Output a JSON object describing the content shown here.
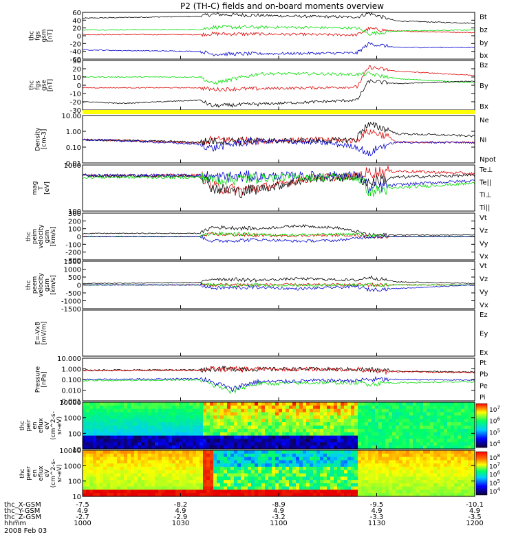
{
  "title": "P2 (TH-C) fields and on-board moments overview",
  "colors": {
    "black": "#000000",
    "red": "#dd0000",
    "green": "#00dd00",
    "blue": "#0000cc",
    "yellow": "#ffff00"
  },
  "chart_data": [
    {
      "id": "bgsm",
      "type": "line",
      "ylabel": [
        "thc",
        "fgs",
        "gsm",
        "[nT]"
      ],
      "yticks": [
        "60",
        "40",
        "20",
        "0",
        "-20",
        "-40",
        "-60"
      ],
      "ylim": [
        -60,
        60
      ],
      "series": [
        {
          "name": "Bt",
          "color": "black",
          "x": [
            0,
            0.05,
            0.3,
            0.33,
            0.55,
            0.7,
            0.73,
            0.8,
            1
          ],
          "y": [
            45,
            46,
            50,
            55,
            50,
            48,
            58,
            38,
            32
          ]
        },
        {
          "name": "bz",
          "color": "red",
          "x": [
            0,
            0.3,
            0.33,
            0.5,
            0.7,
            0.73,
            0.8,
            1
          ],
          "y": [
            3,
            3,
            5,
            4,
            2,
            18,
            12,
            8
          ]
        },
        {
          "name": "by",
          "color": "green",
          "x": [
            0,
            0.3,
            0.33,
            0.5,
            0.7,
            0.73,
            0.8,
            1
          ],
          "y": [
            15,
            16,
            22,
            22,
            20,
            5,
            12,
            15
          ]
        },
        {
          "name": "bx",
          "color": "blue",
          "x": [
            0,
            0.1,
            0.3,
            0.33,
            0.6,
            0.7,
            0.73,
            0.8,
            1
          ],
          "y": [
            -36,
            -38,
            -40,
            -47,
            -45,
            -44,
            -20,
            -30,
            -30
          ]
        }
      ]
    },
    {
      "id": "bgse",
      "type": "line",
      "ylabel": [
        "thc",
        "fgs",
        "gse",
        "[nT]"
      ],
      "yticks": [
        "30",
        "20",
        "10",
        "0",
        "-10",
        "-20",
        "-30"
      ],
      "ylim": [
        -30,
        30
      ],
      "series": [
        {
          "name": "Bz",
          "color": "red",
          "x": [
            0,
            0.3,
            0.33,
            0.6,
            0.7,
            0.73,
            0.8,
            1
          ],
          "y": [
            -3,
            -3,
            -5,
            -3,
            -2,
            22,
            17,
            12
          ]
        },
        {
          "name": "By",
          "color": "green",
          "x": [
            0,
            0.3,
            0.33,
            0.45,
            0.6,
            0.7,
            0.73,
            0.8,
            1
          ],
          "y": [
            10,
            10,
            2,
            14,
            14,
            13,
            14,
            8,
            3
          ]
        },
        {
          "name": "Bx",
          "color": "black",
          "x": [
            0,
            0.1,
            0.3,
            0.33,
            0.6,
            0.7,
            0.73,
            0.8,
            1
          ],
          "y": [
            -20,
            -22,
            -18,
            -25,
            -20,
            -18,
            5,
            2,
            5
          ]
        }
      ]
    },
    {
      "id": "density",
      "type": "line",
      "scale": "log",
      "ylabel": [
        "Density",
        "[cm-3]"
      ],
      "yticks": [
        "10.00",
        "1.00",
        "0.10",
        "0.01"
      ],
      "ylim": [
        0.01,
        10
      ],
      "series": [
        {
          "name": "Ne",
          "color": "red",
          "x": [
            0,
            0.3,
            0.33,
            0.45,
            0.6,
            0.7,
            0.73,
            0.8,
            1
          ],
          "y": [
            0.3,
            0.18,
            0.3,
            0.25,
            0.3,
            0.25,
            1.0,
            0.2,
            0.2
          ]
        },
        {
          "name": "Ni",
          "color": "black",
          "x": [
            0,
            0.3,
            0.33,
            0.45,
            0.6,
            0.7,
            0.73,
            0.8,
            1
          ],
          "y": [
            0.3,
            0.2,
            0.25,
            0.25,
            0.25,
            0.3,
            2.5,
            0.7,
            0.5
          ]
        },
        {
          "name": "Npot",
          "color": "blue",
          "x": [
            0,
            0.3,
            0.33,
            0.45,
            0.6,
            0.7,
            0.73,
            0.8,
            1
          ],
          "y": [
            0.3,
            0.15,
            0.08,
            0.25,
            0.2,
            0.1,
            0.03,
            0.2,
            0.2
          ]
        }
      ]
    },
    {
      "id": "temp",
      "type": "line",
      "scale": "log",
      "ylabel": [
        "mag",
        "T",
        "[eV]"
      ],
      "yticks": [
        "1000",
        "100"
      ],
      "ylim": [
        100,
        8000
      ],
      "series": [
        {
          "name": "Te⊥",
          "color": "red",
          "x": [
            0,
            0.3,
            0.33,
            0.4,
            0.5,
            0.6,
            0.7,
            0.73,
            0.8,
            1
          ],
          "y": [
            3000,
            3000,
            1000,
            700,
            1200,
            2500,
            2700,
            4000,
            4500,
            3500
          ]
        },
        {
          "name": "Te||",
          "color": "black",
          "x": [
            0,
            0.3,
            0.33,
            0.4,
            0.5,
            0.6,
            0.7,
            0.73,
            0.8,
            1
          ],
          "y": [
            2800,
            2800,
            900,
            600,
            1100,
            2300,
            2500,
            1500,
            2500,
            3000
          ]
        },
        {
          "name": "Ti⊥",
          "color": "blue",
          "x": [
            0,
            0.3,
            0.33,
            0.5,
            0.6,
            0.7,
            0.73,
            0.8,
            1
          ],
          "y": [
            3000,
            3000,
            2500,
            2800,
            3000,
            3000,
            800,
            1200,
            1800
          ]
        },
        {
          "name": "Ti||",
          "color": "green",
          "x": [
            0,
            0.3,
            0.33,
            0.5,
            0.6,
            0.7,
            0.73,
            0.8,
            1
          ],
          "y": [
            2500,
            2500,
            2000,
            2400,
            2500,
            2500,
            600,
            900,
            1400
          ]
        }
      ]
    },
    {
      "id": "vpeim",
      "type": "line",
      "ylabel": [
        "thc",
        "peim",
        "velocity",
        "gsm",
        "[km/s]"
      ],
      "yticks": [
        "300",
        "200",
        "100",
        "0",
        "-100",
        "-200",
        "-300"
      ],
      "ylim": [
        -300,
        300
      ],
      "series": [
        {
          "name": "Vt",
          "color": "black",
          "x": [
            0,
            0.3,
            0.33,
            0.45,
            0.55,
            0.65,
            0.7,
            0.73,
            1
          ],
          "y": [
            40,
            40,
            120,
            100,
            140,
            110,
            60,
            20,
            20
          ]
        },
        {
          "name": "Vz",
          "color": "red",
          "x": [
            0,
            0.3,
            0.33,
            0.5,
            0.7,
            0.73,
            1
          ],
          "y": [
            0,
            0,
            30,
            10,
            20,
            0,
            0
          ]
        },
        {
          "name": "Vy",
          "color": "green",
          "x": [
            0,
            0.3,
            0.33,
            0.5,
            0.7,
            0.73,
            1
          ],
          "y": [
            0,
            0,
            40,
            20,
            30,
            0,
            0
          ]
        },
        {
          "name": "Vx",
          "color": "blue",
          "x": [
            0,
            0.3,
            0.33,
            0.45,
            0.55,
            0.65,
            0.7,
            0.73,
            1
          ],
          "y": [
            0,
            0,
            -60,
            -40,
            -60,
            -50,
            -20,
            0,
            0
          ]
        }
      ]
    },
    {
      "id": "vpeem",
      "type": "line",
      "ylabel": [
        "thc",
        "peem",
        "velocity",
        "gsm",
        "[km/s]"
      ],
      "yticks": [
        "1500",
        "1000",
        "500",
        "0",
        "-500",
        "-1000",
        "-1500"
      ],
      "ylim": [
        -1500,
        1500
      ],
      "series": [
        {
          "name": "Vt",
          "color": "black",
          "x": [
            0,
            0.3,
            0.33,
            0.45,
            0.55,
            0.7,
            0.73,
            0.8,
            1
          ],
          "y": [
            100,
            150,
            400,
            300,
            400,
            300,
            500,
            200,
            100
          ]
        },
        {
          "name": "Vz",
          "color": "red",
          "x": [
            0,
            0.3,
            0.5,
            0.7,
            1
          ],
          "y": [
            0,
            0,
            20,
            10,
            0
          ]
        },
        {
          "name": "Vy",
          "color": "green",
          "x": [
            0,
            0.3,
            0.5,
            0.7,
            1
          ],
          "y": [
            0,
            0,
            -20,
            0,
            0
          ]
        },
        {
          "name": "Vx",
          "color": "blue",
          "x": [
            0,
            0.3,
            0.33,
            0.45,
            0.55,
            0.7,
            0.73,
            1
          ],
          "y": [
            0,
            0,
            -200,
            -150,
            -250,
            -100,
            -300,
            0
          ]
        }
      ]
    },
    {
      "id": "efield",
      "type": "line",
      "ylabel": [
        "E=-VxB",
        "[mV/m]"
      ],
      "yticks": [],
      "ylim": [
        -1,
        1
      ],
      "series": [
        {
          "name": "Ez",
          "color": "red",
          "x": [],
          "y": []
        },
        {
          "name": "Ey",
          "color": "green",
          "x": [],
          "y": []
        },
        {
          "name": "Ex",
          "color": "blue",
          "x": [],
          "y": []
        }
      ]
    },
    {
      "id": "pressure",
      "type": "line",
      "scale": "log",
      "ylabel": [
        "Pressure",
        "[nPa]"
      ],
      "yticks": [
        "10.000",
        "1.000",
        "0.100",
        "0.010",
        "0.001"
      ],
      "ylim": [
        0.001,
        10
      ],
      "series": [
        {
          "name": "Pt",
          "color": "black",
          "x": [
            0,
            0.3,
            0.33,
            0.6,
            0.7,
            0.73,
            0.8,
            1
          ],
          "y": [
            0.75,
            0.8,
            1.0,
            0.95,
            0.9,
            0.8,
            0.6,
            0.5
          ]
        },
        {
          "name": "Pb",
          "color": "red",
          "x": [
            0,
            0.3,
            0.33,
            0.6,
            0.7,
            0.73,
            0.8,
            1
          ],
          "y": [
            0.7,
            0.75,
            0.95,
            0.9,
            0.85,
            0.6,
            0.55,
            0.45
          ]
        },
        {
          "name": "Pe",
          "color": "green",
          "x": [
            0,
            0.3,
            0.33,
            0.38,
            0.45,
            0.6,
            0.7,
            0.73,
            0.8,
            1
          ],
          "y": [
            0.08,
            0.09,
            0.03,
            0.005,
            0.04,
            0.05,
            0.05,
            0.04,
            0.05,
            0.06
          ]
        },
        {
          "name": "Pi",
          "color": "blue",
          "x": [
            0,
            0.3,
            0.33,
            0.38,
            0.45,
            0.6,
            0.7,
            0.73,
            0.8,
            1
          ],
          "y": [
            0.1,
            0.12,
            0.05,
            0.01,
            0.06,
            0.08,
            0.08,
            0.1,
            0.1,
            0.09
          ]
        }
      ]
    },
    {
      "id": "peir",
      "type": "heatmap",
      "ylabel": [
        "thc",
        "peir",
        "en",
        "eflux",
        "eV",
        "(cm^2-s-",
        "sr-eV)"
      ],
      "yticks": [
        "10000",
        "1000",
        "100",
        "10"
      ],
      "ylim": [
        10,
        20000
      ],
      "colorbar_ticks": [
        "10^7",
        "10^6",
        "10^5",
        "10^4"
      ]
    },
    {
      "id": "peer",
      "type": "heatmap",
      "ylabel": [
        "thc",
        "peer",
        "en",
        "eflux",
        "eV",
        "(cm^2-s-",
        "sr-eV)"
      ],
      "yticks": [
        "10000",
        "1000",
        "100",
        "10"
      ],
      "ylim": [
        10,
        20000
      ],
      "colorbar_ticks": [
        "10^8",
        "10^7",
        "10^6",
        "10^5",
        "10^4"
      ]
    }
  ],
  "xaxis": {
    "time_ticks": [
      "1000",
      "1030",
      "1100",
      "1130",
      "1200"
    ],
    "rows": [
      {
        "label": "thc_X-GSM",
        "values": [
          "-7.5",
          "-8.2",
          "-8.9",
          "-9.5",
          "-10.1"
        ]
      },
      {
        "label": "thc_Y-GSM",
        "values": [
          "4.9",
          "4.9",
          "4.9",
          "4.9",
          "4.9"
        ]
      },
      {
        "label": "thc_Z-GSM",
        "values": [
          "-2.7",
          "-2.9",
          "-3.2",
          "-3.3",
          "-3.5"
        ]
      },
      {
        "label": "hhmm",
        "values": [
          "1000",
          "1030",
          "1100",
          "1130",
          "1200"
        ]
      }
    ],
    "date": "2008 Feb 03"
  }
}
